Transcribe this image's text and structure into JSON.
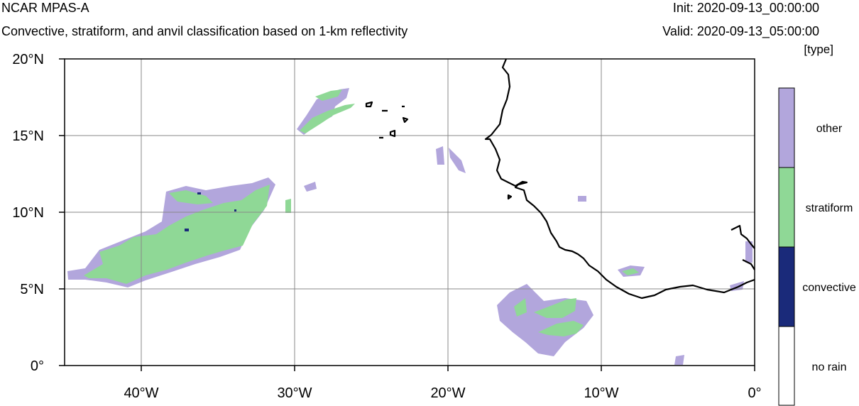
{
  "header": {
    "title": "NCAR MPAS-A",
    "subtitle": "Convective, stratiform, and anvil classification based on 1-km reflectivity",
    "init": "Init: 2020-09-13_00:00:00",
    "valid": "Valid: 2020-09-13_05:00:00",
    "units": "[type]"
  },
  "axes": {
    "lat_labels": [
      "20°N",
      "15°N",
      "10°N",
      "5°N",
      "0°"
    ],
    "lon_labels": [
      "40°W",
      "30°W",
      "20°W",
      "10°W",
      "0°"
    ],
    "lat_range": [
      0,
      20
    ],
    "lon_range": [
      -45,
      0
    ],
    "grid": true
  },
  "legend": {
    "items": [
      {
        "label": "other",
        "color": "#b2a6dc"
      },
      {
        "label": "stratiform",
        "color": "#8fd896"
      },
      {
        "label": "convective",
        "color": "#1a2a7a"
      },
      {
        "label": "no rain",
        "color": "#ffffff"
      }
    ]
  },
  "colors": {
    "other": "#b2a6dc",
    "stratiform": "#8fd896",
    "convective": "#1a2a7a",
    "coastline": "#000000"
  }
}
